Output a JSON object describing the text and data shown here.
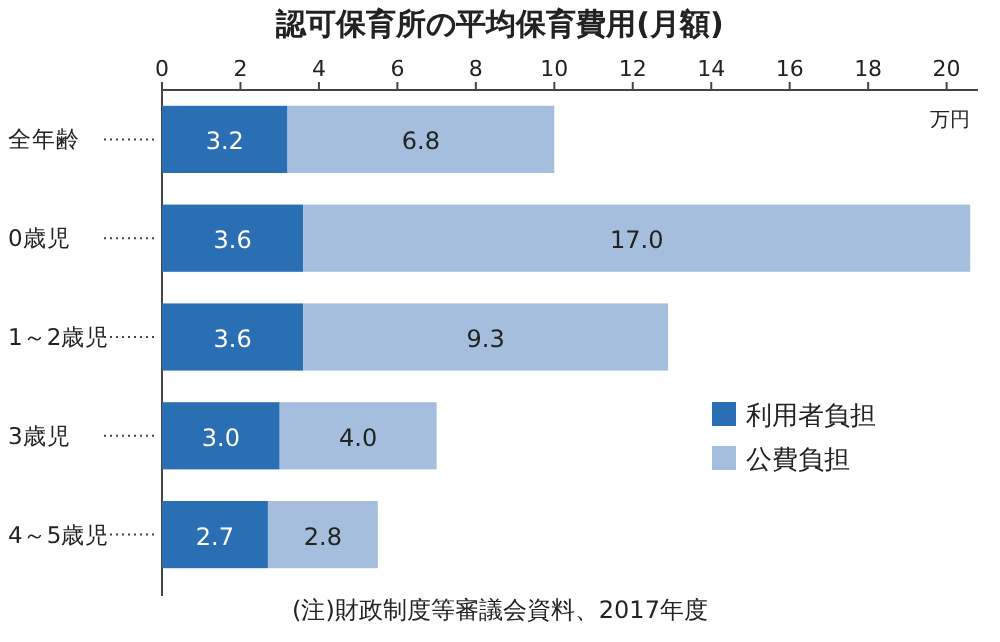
{
  "chart_data": {
    "type": "bar",
    "orientation": "horizontal",
    "stacked": true,
    "title": "認可保育所の平均保育費用(月額)",
    "xlabel": "万円",
    "categories": [
      "全年齢",
      "0歳児",
      "1～2歳児",
      "3歳児",
      "4～5歳児"
    ],
    "series": [
      {
        "name": "利用者負担",
        "color": "#2a6eb4",
        "values": [
          3.2,
          3.6,
          3.6,
          3.0,
          2.7
        ],
        "value_labels": [
          "3.2",
          "3.6",
          "3.6",
          "3.0",
          "2.7"
        ]
      },
      {
        "name": "公費負担",
        "color": "#a5bedd",
        "values": [
          6.8,
          17.0,
          9.3,
          4.0,
          2.8
        ],
        "value_labels": [
          "6.8",
          "17.0",
          "9.3",
          "4.0",
          "2.8"
        ]
      }
    ],
    "xlim": [
      0,
      20.8
    ],
    "xticks": [
      0,
      2,
      4,
      6,
      8,
      10,
      12,
      14,
      16,
      18,
      20
    ],
    "grid": false,
    "legend": "bottom right",
    "annotations": [
      "(注)財政制度等審議会資料、2017年度"
    ]
  }
}
